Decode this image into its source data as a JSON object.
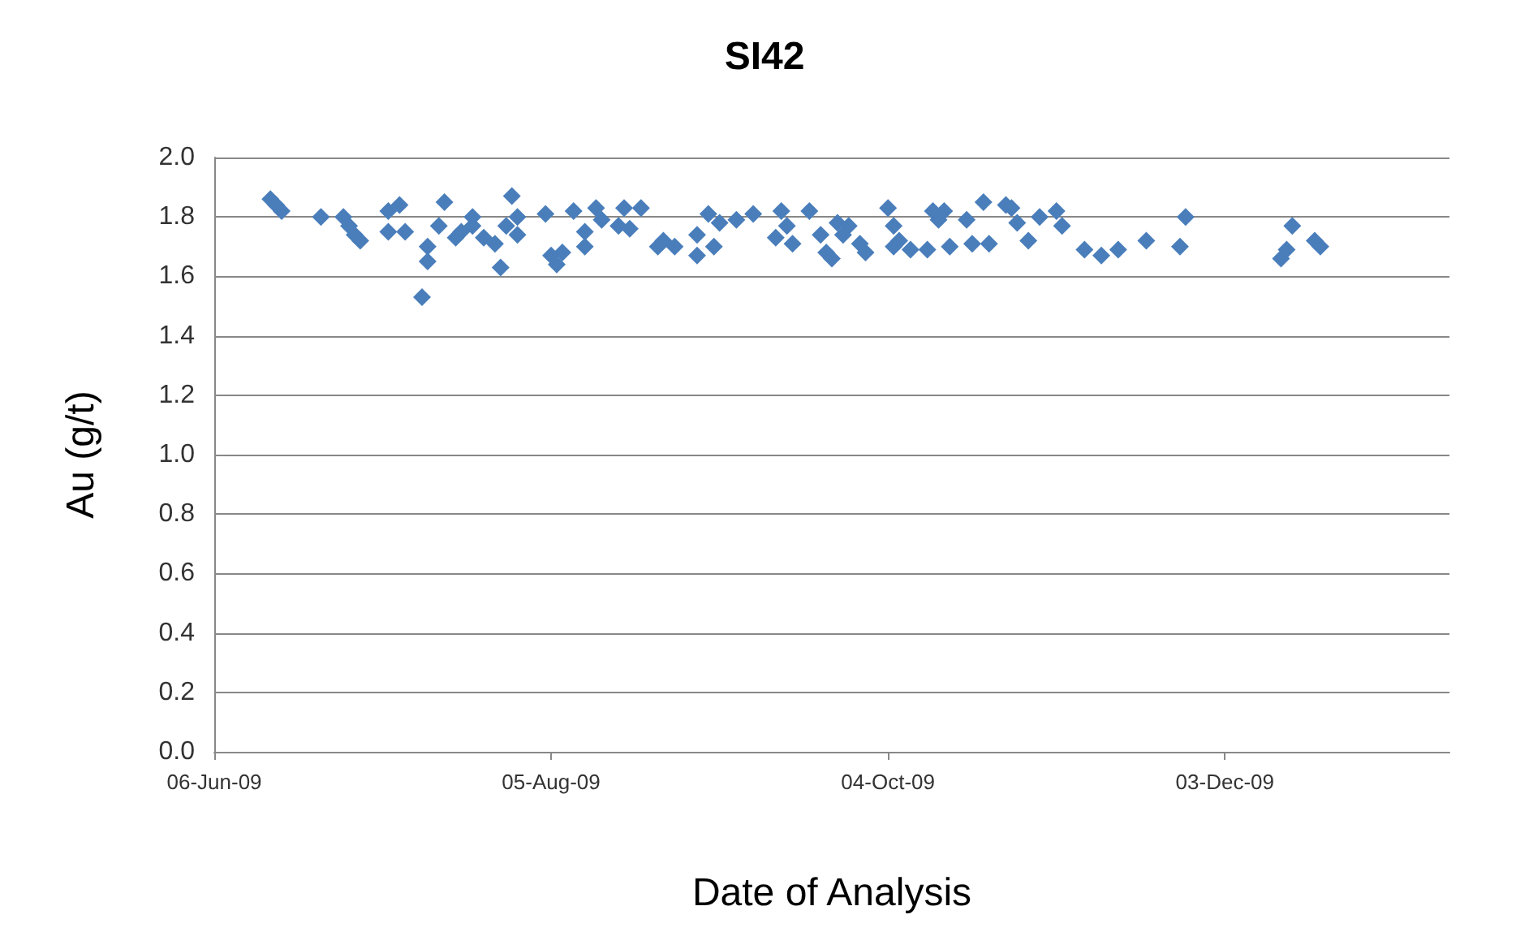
{
  "chart_data": {
    "type": "scatter",
    "title": "SI42",
    "xlabel": "Date of Analysis",
    "ylabel": "Au (g/t)",
    "x": [
      "2009-06-16",
      "2009-06-17",
      "2009-06-18",
      "2009-06-25",
      "2009-06-29",
      "2009-06-30",
      "2009-07-01",
      "2009-07-02",
      "2009-07-07",
      "2009-07-07",
      "2009-07-09",
      "2009-07-10",
      "2009-07-13",
      "2009-07-14",
      "2009-07-14",
      "2009-07-16",
      "2009-07-17",
      "2009-07-19",
      "2009-07-20",
      "2009-07-22",
      "2009-07-22",
      "2009-07-24",
      "2009-07-26",
      "2009-07-27",
      "2009-07-28",
      "2009-07-29",
      "2009-07-30",
      "2009-07-30",
      "2009-08-04",
      "2009-08-05",
      "2009-08-06",
      "2009-08-07",
      "2009-08-09",
      "2009-08-11",
      "2009-08-11",
      "2009-08-13",
      "2009-08-14",
      "2009-08-17",
      "2009-08-18",
      "2009-08-19",
      "2009-08-21",
      "2009-08-24",
      "2009-08-25",
      "2009-08-27",
      "2009-08-31",
      "2009-08-31",
      "2009-09-02",
      "2009-09-03",
      "2009-09-04",
      "2009-09-07",
      "2009-09-10",
      "2009-09-14",
      "2009-09-15",
      "2009-09-16",
      "2009-09-17",
      "2009-09-20",
      "2009-09-22",
      "2009-09-23",
      "2009-09-24",
      "2009-09-25",
      "2009-09-26",
      "2009-09-27",
      "2009-09-29",
      "2009-09-30",
      "2009-10-04",
      "2009-10-05",
      "2009-10-05",
      "2009-10-06",
      "2009-10-08",
      "2009-10-11",
      "2009-10-12",
      "2009-10-13",
      "2009-10-14",
      "2009-10-15",
      "2009-10-18",
      "2009-10-19",
      "2009-10-21",
      "2009-10-22",
      "2009-10-25",
      "2009-10-26",
      "2009-10-27",
      "2009-10-29",
      "2009-10-31",
      "2009-11-03",
      "2009-11-04",
      "2009-11-08",
      "2009-11-11",
      "2009-11-14",
      "2009-11-19",
      "2009-11-25",
      "2009-11-26",
      "2009-12-13",
      "2009-12-14",
      "2009-12-15",
      "2009-12-19",
      "2009-12-20"
    ],
    "series": [
      {
        "color": "#4a7ebb",
        "values": [
          1.86,
          1.84,
          1.82,
          1.8,
          1.8,
          1.77,
          1.74,
          1.72,
          1.82,
          1.75,
          1.84,
          1.75,
          1.53,
          1.7,
          1.65,
          1.77,
          1.85,
          1.73,
          1.75,
          1.8,
          1.77,
          1.73,
          1.71,
          1.63,
          1.77,
          1.87,
          1.8,
          1.74,
          1.81,
          1.67,
          1.64,
          1.68,
          1.82,
          1.75,
          1.7,
          1.83,
          1.79,
          1.77,
          1.83,
          1.76,
          1.83,
          1.7,
          1.72,
          1.7,
          1.67,
          1.74,
          1.81,
          1.7,
          1.78,
          1.79,
          1.81,
          1.73,
          1.82,
          1.77,
          1.71,
          1.82,
          1.74,
          1.68,
          1.66,
          1.78,
          1.74,
          1.77,
          1.71,
          1.68,
          1.83,
          1.77,
          1.7,
          1.72,
          1.69,
          1.69,
          1.82,
          1.79,
          1.82,
          1.7,
          1.79,
          1.71,
          1.85,
          1.71,
          1.84,
          1.83,
          1.78,
          1.72,
          1.8,
          1.82,
          1.77,
          1.69,
          1.67,
          1.69,
          1.72,
          1.7,
          1.8,
          1.66,
          1.69,
          1.77,
          1.72,
          1.7
        ]
      }
    ],
    "xlim": [
      "2009-06-06",
      "2010-01-12"
    ],
    "xticks": [
      {
        "value": "2009-06-06",
        "label": "06-Jun-09"
      },
      {
        "value": "2009-08-05",
        "label": "05-Aug-09"
      },
      {
        "value": "2009-10-04",
        "label": "04-Oct-09"
      },
      {
        "value": "2009-12-03",
        "label": "03-Dec-09"
      }
    ],
    "ylim": [
      0,
      2.0
    ],
    "yticks": [
      {
        "value": 0,
        "label": "0.0"
      },
      {
        "value": 0.2,
        "label": "0.2"
      },
      {
        "value": 0.4,
        "label": "0.4"
      },
      {
        "value": 0.6,
        "label": "0.6"
      },
      {
        "value": 0.8,
        "label": "0.8"
      },
      {
        "value": 1.0,
        "label": "1.0"
      },
      {
        "value": 1.2,
        "label": "1.2"
      },
      {
        "value": 1.4,
        "label": "1.4"
      },
      {
        "value": 1.6,
        "label": "1.6"
      },
      {
        "value": 1.8,
        "label": "1.8"
      },
      {
        "value": 2.0,
        "label": "2.0"
      }
    ],
    "grid": "y",
    "marker": "diamond"
  }
}
